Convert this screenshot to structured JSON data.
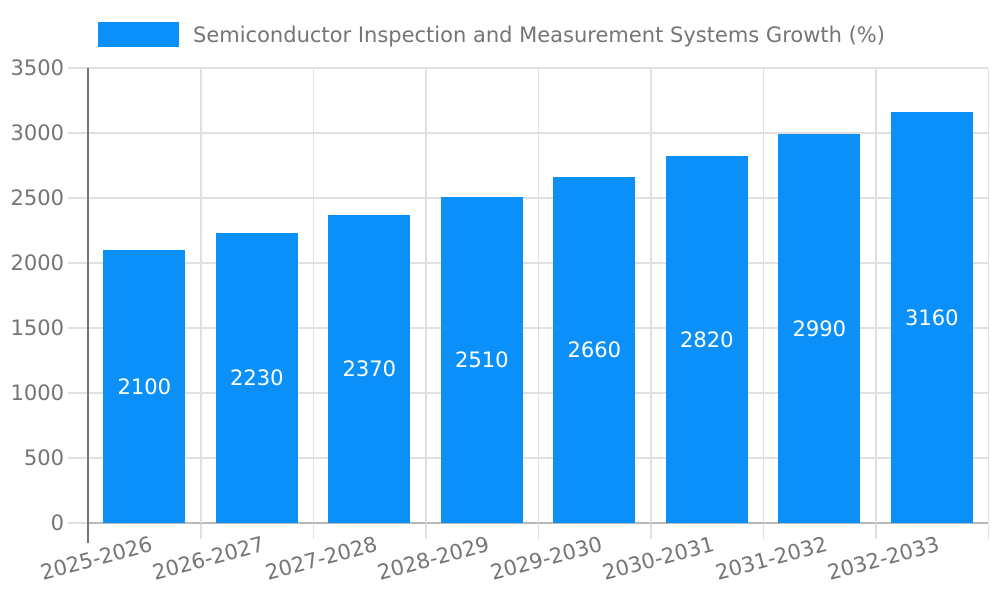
{
  "chart_data": {
    "type": "bar",
    "title": "Semiconductor Inspection and Measurement Systems Growth (%)",
    "categories": [
      "2025-2026",
      "2026-2027",
      "2027-2028",
      "2028-2029",
      "2029-2030",
      "2030-2031",
      "2031-2032",
      "2032-2033"
    ],
    "values": [
      2100,
      2230,
      2370,
      2510,
      2660,
      2820,
      2990,
      3160
    ],
    "value_labels": [
      "2100",
      "2230",
      "2370",
      "2510",
      "2660",
      "2820",
      "2990",
      "3160"
    ],
    "xlabel": "",
    "ylabel": "",
    "ylim": [
      0,
      3500
    ],
    "yticks": [
      0,
      500,
      1000,
      1500,
      2000,
      2500,
      3000,
      3500
    ],
    "grid": true,
    "legend_position": "top-left",
    "x_label_rotation_deg": -15,
    "colors": {
      "bar": "#0b90f9",
      "value_label": "#ffffff",
      "axis_text": "#757575",
      "title_text": "#757575",
      "gridline": "#e0e0e0",
      "baseline": "#b9b9b9",
      "axis_line": "#757575"
    }
  }
}
